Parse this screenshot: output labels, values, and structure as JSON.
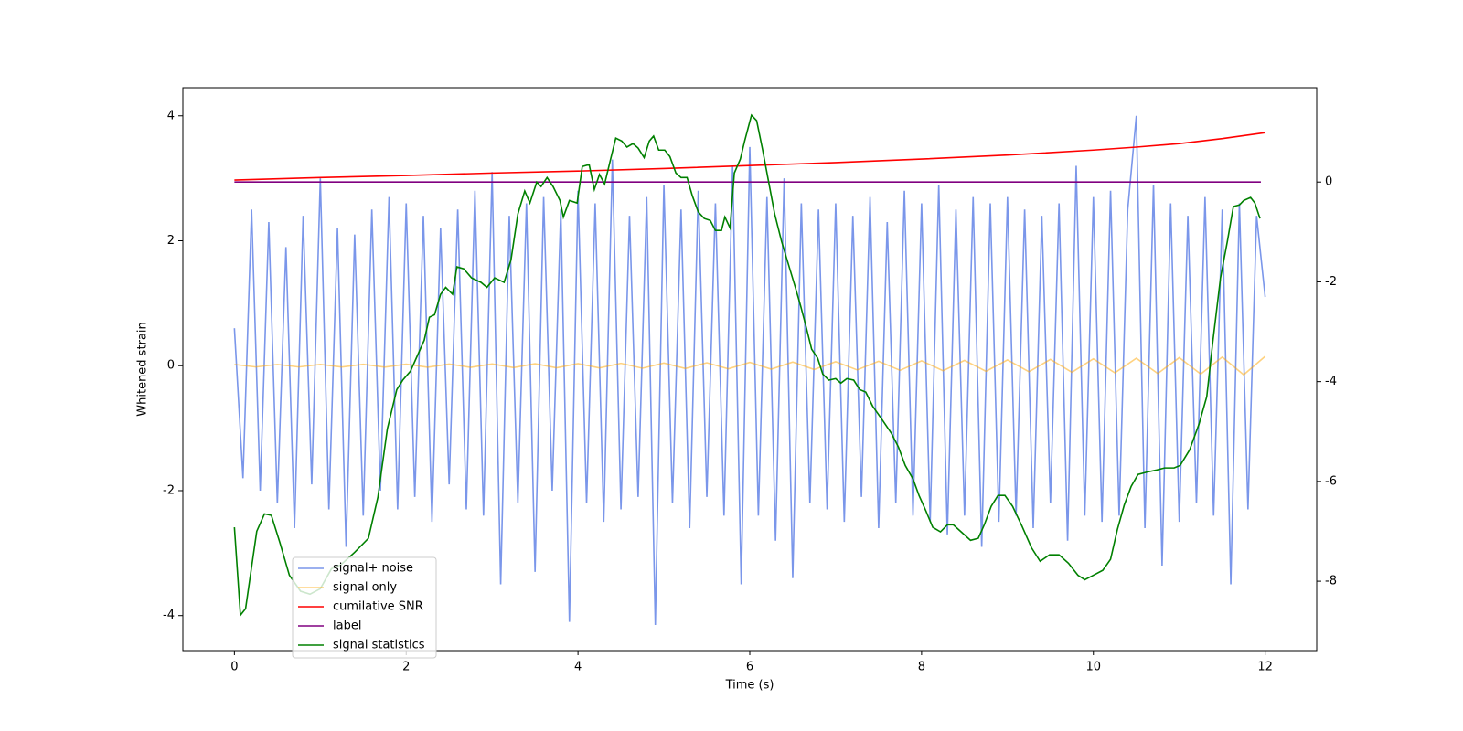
{
  "chart_data": {
    "type": "line",
    "xlabel": "Time (s)",
    "ylabel": "Whitened strain",
    "xlim": [
      -0.6,
      12.6
    ],
    "xticks": [
      0,
      2,
      4,
      6,
      8,
      10,
      12
    ],
    "ylim": [
      -4.56,
      4.45
    ],
    "yticks": [
      -4,
      -2,
      0,
      2,
      4
    ],
    "y2lim": [
      -9.39,
      1.89
    ],
    "y2ticks": [
      -8,
      -6,
      -4,
      -2,
      0
    ],
    "legend": "lower left",
    "series": [
      {
        "name": "signal+ noise",
        "color": "#4169e1",
        "alpha": 0.7,
        "x": [
          0,
          0.1,
          0.2,
          0.3,
          0.4,
          0.5,
          0.6,
          0.7,
          0.8,
          0.9,
          1.0,
          1.1,
          1.2,
          1.3,
          1.4,
          1.5,
          1.6,
          1.7,
          1.8,
          1.9,
          2.0,
          2.1,
          2.2,
          2.3,
          2.4,
          2.5,
          2.6,
          2.7,
          2.8,
          2.9,
          3.0,
          3.1,
          3.2,
          3.3,
          3.4,
          3.5,
          3.6,
          3.7,
          3.8,
          3.9,
          4.0,
          4.1,
          4.2,
          4.3,
          4.4,
          4.5,
          4.6,
          4.7,
          4.8,
          4.9,
          5.0,
          5.1,
          5.2,
          5.3,
          5.4,
          5.5,
          5.6,
          5.7,
          5.8,
          5.9,
          6.0,
          6.1,
          6.2,
          6.3,
          6.4,
          6.5,
          6.6,
          6.7,
          6.8,
          6.9,
          7.0,
          7.1,
          7.2,
          7.3,
          7.4,
          7.5,
          7.6,
          7.7,
          7.8,
          7.9,
          8.0,
          8.1,
          8.2,
          8.3,
          8.4,
          8.5,
          8.6,
          8.7,
          8.8,
          8.9,
          9.0,
          9.1,
          9.2,
          9.3,
          9.4,
          9.5,
          9.6,
          9.7,
          9.8,
          9.9,
          10.0,
          10.1,
          10.2,
          10.3,
          10.4,
          10.5,
          10.6,
          10.7,
          10.8,
          10.9,
          11.0,
          11.1,
          11.2,
          11.3,
          11.4,
          11.5,
          11.6,
          11.7,
          11.8,
          11.9,
          12.0
        ],
        "values": [
          0.6,
          -1.8,
          2.5,
          -2.0,
          2.3,
          -2.2,
          1.9,
          -2.6,
          2.4,
          -1.9,
          3.0,
          -2.3,
          2.2,
          -2.9,
          2.1,
          -2.4,
          2.5,
          -2.0,
          2.7,
          -2.3,
          2.6,
          -2.1,
          2.4,
          -2.5,
          2.2,
          -1.9,
          2.5,
          -2.3,
          2.8,
          -2.4,
          3.1,
          -3.5,
          2.4,
          -2.2,
          2.6,
          -3.3,
          2.7,
          -2.0,
          2.5,
          -4.1,
          2.8,
          -2.2,
          2.6,
          -2.5,
          3.3,
          -2.3,
          2.4,
          -2.1,
          2.7,
          -4.15,
          2.9,
          -2.2,
          2.5,
          -2.6,
          2.8,
          -2.1,
          2.6,
          -2.4,
          3.2,
          -3.5,
          3.5,
          -2.4,
          2.7,
          -2.8,
          3.0,
          -3.4,
          2.6,
          -2.2,
          2.5,
          -2.3,
          2.6,
          -2.5,
          2.4,
          -2.1,
          2.7,
          -2.6,
          2.3,
          -2.2,
          2.8,
          -2.4,
          2.6,
          -2.5,
          2.9,
          -2.7,
          2.5,
          -2.4,
          2.7,
          -2.9,
          2.6,
          -2.5,
          2.7,
          -2.4,
          2.5,
          -2.6,
          2.4,
          -2.2,
          2.6,
          -2.8,
          3.2,
          -2.4,
          2.7,
          -2.5,
          2.8,
          -2.4,
          2.5,
          4.0,
          -2.6,
          2.9,
          -3.2,
          2.6,
          -2.5,
          2.4,
          -2.2,
          2.7,
          -2.4,
          2.5,
          -3.5,
          2.6,
          -2.3,
          2.4,
          1.1
        ]
      },
      {
        "name": "signal only",
        "color": "#ffa500",
        "alpha": 0.5,
        "x": [
          0,
          0.25,
          0.5,
          0.75,
          1,
          1.25,
          1.5,
          1.75,
          2,
          2.25,
          2.5,
          2.75,
          3,
          3.25,
          3.5,
          3.75,
          4,
          4.25,
          4.5,
          4.75,
          5,
          5.25,
          5.5,
          5.75,
          6,
          6.25,
          6.5,
          6.75,
          7,
          7.25,
          7.5,
          7.75,
          8,
          8.25,
          8.5,
          8.75,
          9,
          9.25,
          9.5,
          9.75,
          10,
          10.25,
          10.5,
          10.75,
          11,
          11.25,
          11.5,
          11.75,
          12
        ],
        "values": [
          0.02,
          -0.02,
          0.02,
          -0.02,
          0.021,
          -0.021,
          0.022,
          -0.023,
          0.024,
          -0.025,
          0.026,
          -0.027,
          0.028,
          -0.03,
          0.031,
          -0.033,
          0.034,
          -0.036,
          0.038,
          -0.04,
          0.043,
          -0.045,
          0.047,
          -0.05,
          0.053,
          -0.055,
          0.058,
          -0.061,
          0.064,
          -0.067,
          0.071,
          -0.074,
          0.078,
          -0.081,
          0.085,
          -0.089,
          0.093,
          -0.097,
          0.101,
          -0.105,
          0.11,
          -0.114,
          0.119,
          -0.124,
          0.129,
          -0.134,
          0.139,
          -0.145,
          0.15
        ]
      },
      {
        "name": "cumilative SNR",
        "color": "#ff0000",
        "axis": "y2",
        "x": [
          0,
          1,
          2,
          3,
          4,
          5,
          6,
          7,
          8,
          9,
          10,
          10.5,
          11,
          11.5,
          12
        ],
        "values": [
          0.04,
          0.09,
          0.13,
          0.18,
          0.22,
          0.27,
          0.33,
          0.39,
          0.46,
          0.54,
          0.64,
          0.7,
          0.77,
          0.87,
          0.99
        ]
      },
      {
        "name": "label",
        "color": "#800080",
        "axis": "y2",
        "x": [
          0,
          11.95
        ],
        "values": [
          0,
          0
        ]
      },
      {
        "name": "signal statistics",
        "color": "#008000",
        "axis": "y2",
        "x": [
          0,
          0.07,
          0.13,
          0.26,
          0.35,
          0.43,
          0.53,
          0.64,
          0.77,
          0.88,
          1.0,
          1.13,
          1.24,
          1.4,
          1.56,
          1.67,
          1.78,
          1.89,
          1.96,
          2.05,
          2.13,
          2.21,
          2.27,
          2.33,
          2.4,
          2.46,
          2.54,
          2.59,
          2.67,
          2.76,
          2.87,
          2.94,
          3.03,
          3.14,
          3.22,
          3.3,
          3.38,
          3.44,
          3.52,
          3.57,
          3.64,
          3.71,
          3.79,
          3.83,
          3.9,
          3.99,
          4.05,
          4.13,
          4.19,
          4.25,
          4.31,
          4.38,
          4.44,
          4.51,
          4.57,
          4.64,
          4.7,
          4.77,
          4.83,
          4.88,
          4.94,
          5.01,
          5.07,
          5.14,
          5.2,
          5.27,
          5.33,
          5.4,
          5.47,
          5.54,
          5.6,
          5.67,
          5.71,
          5.77,
          5.82,
          5.89,
          5.94,
          6.02,
          6.08,
          6.15,
          6.21,
          6.29,
          6.37,
          6.45,
          6.53,
          6.59,
          6.66,
          6.72,
          6.79,
          6.85,
          6.92,
          7.0,
          7.06,
          7.13,
          7.21,
          7.28,
          7.35,
          7.43,
          7.54,
          7.65,
          7.73,
          7.81,
          7.9,
          7.97,
          8.05,
          8.13,
          8.22,
          8.3,
          8.37,
          8.46,
          8.57,
          8.66,
          8.73,
          8.81,
          8.89,
          8.97,
          9.06,
          9.17,
          9.28,
          9.38,
          9.49,
          9.6,
          9.71,
          9.82,
          9.9,
          10.0,
          10.11,
          10.2,
          10.28,
          10.36,
          10.44,
          10.52,
          10.63,
          10.74,
          10.83,
          10.94,
          11.01,
          11.12,
          11.23,
          11.32,
          11.39,
          11.48,
          11.56,
          11.63,
          11.7,
          11.75,
          11.83,
          11.88,
          11.94
        ],
        "values": [
          -6.92,
          -8.68,
          -8.55,
          -7.0,
          -6.65,
          -6.68,
          -7.23,
          -7.88,
          -8.2,
          -8.26,
          -8.15,
          -7.75,
          -7.67,
          -7.42,
          -7.14,
          -6.32,
          -4.95,
          -4.16,
          -3.97,
          -3.79,
          -3.48,
          -3.17,
          -2.71,
          -2.66,
          -2.25,
          -2.11,
          -2.25,
          -1.7,
          -1.74,
          -1.92,
          -2.01,
          -2.11,
          -1.92,
          -2.01,
          -1.56,
          -0.64,
          -0.18,
          -0.42,
          0.0,
          -0.09,
          0.09,
          -0.09,
          -0.37,
          -0.7,
          -0.37,
          -0.42,
          0.31,
          0.35,
          -0.15,
          0.15,
          -0.04,
          0.46,
          0.88,
          0.82,
          0.7,
          0.77,
          0.68,
          0.49,
          0.82,
          0.92,
          0.64,
          0.64,
          0.51,
          0.18,
          0.09,
          0.09,
          -0.27,
          -0.6,
          -0.73,
          -0.77,
          -0.97,
          -0.97,
          -0.7,
          -0.92,
          0.18,
          0.46,
          0.82,
          1.34,
          1.23,
          0.64,
          0.09,
          -0.64,
          -1.19,
          -1.65,
          -2.11,
          -2.47,
          -2.93,
          -3.35,
          -3.53,
          -3.85,
          -3.97,
          -3.94,
          -4.03,
          -3.94,
          -3.97,
          -4.16,
          -4.21,
          -4.49,
          -4.76,
          -5.04,
          -5.31,
          -5.68,
          -5.95,
          -6.28,
          -6.59,
          -6.92,
          -7.01,
          -6.87,
          -6.87,
          -7.01,
          -7.18,
          -7.14,
          -6.87,
          -6.5,
          -6.28,
          -6.28,
          -6.5,
          -6.9,
          -7.33,
          -7.6,
          -7.47,
          -7.47,
          -7.64,
          -7.88,
          -7.97,
          -7.88,
          -7.78,
          -7.56,
          -6.96,
          -6.47,
          -6.1,
          -5.86,
          -5.81,
          -5.77,
          -5.73,
          -5.73,
          -5.68,
          -5.37,
          -4.85,
          -4.3,
          -3.21,
          -1.92,
          -1.19,
          -0.49,
          -0.46,
          -0.37,
          -0.31,
          -0.42,
          -0.73
        ]
      }
    ]
  }
}
